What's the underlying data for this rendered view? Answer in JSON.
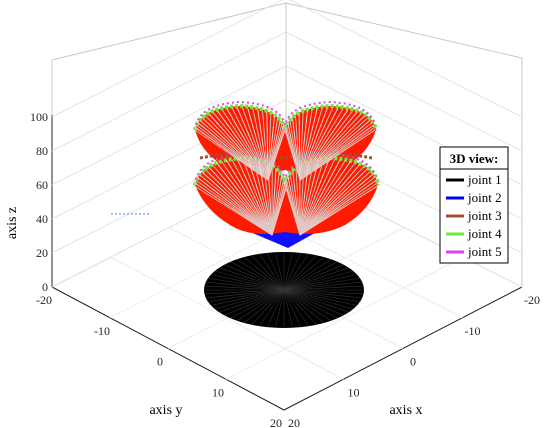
{
  "chart_data": {
    "type": "line3d",
    "title": "",
    "xlabel": "axis x",
    "ylabel": "axis y",
    "zlabel": "axis z",
    "xlim": [
      -20,
      20
    ],
    "ylim": [
      -20,
      20
    ],
    "zlim": [
      0,
      100
    ],
    "x_ticks": [
      "-20",
      "-10",
      "0",
      "10",
      "20"
    ],
    "y_ticks": [
      "-20",
      "-10",
      "0",
      "10",
      "20"
    ],
    "z_ticks": [
      "0",
      "20",
      "40",
      "60",
      "80",
      "100"
    ],
    "grid": true,
    "legend_title": "3D view:",
    "legend_position": "right",
    "series": [
      {
        "name": "joint 1",
        "color": "#000000",
        "description_z": 0
      },
      {
        "name": "joint 2",
        "color": "#0000ff",
        "description_z": 23
      },
      {
        "name": "joint 3",
        "color": "#a0522d",
        "description_z": 55
      },
      {
        "name": "joint 4",
        "color": "#66ee33",
        "description_z": 75
      },
      {
        "name": "joint 5",
        "color": "#dd44ee",
        "description_z": 85
      }
    ]
  }
}
